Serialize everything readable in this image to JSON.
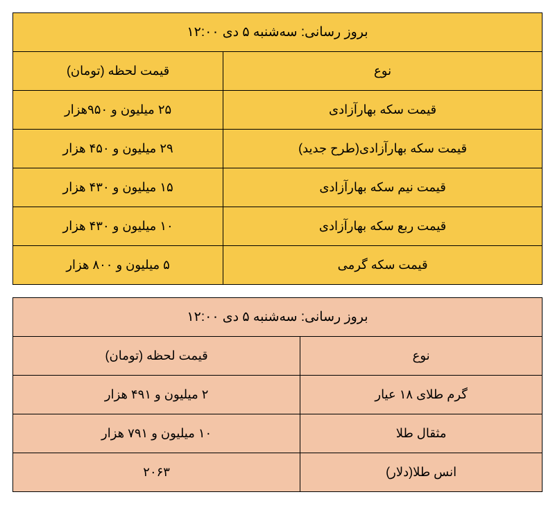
{
  "coin_table": {
    "bg": "yellow",
    "update_label": "بروز رسانی: سه‌شنبه ۵  دی  ۱۲:۰۰",
    "header_type": "نوع",
    "header_price": "قیمت لحظه (تومان)",
    "rows": [
      {
        "type": "قیمت سکه بهارآزادی",
        "price": "۲۵  میلیون و ۹۵۰هزار"
      },
      {
        "type": "قیمت سکه بهارآزادی(طرح جدید)",
        "price": "۲۹  میلیون و ۴۵۰ هزار"
      },
      {
        "type": "قیمت نیم سکه بهارآزادی",
        "price": "۱۵  میلیون و ۴۳۰ هزار"
      },
      {
        "type": "قیمت ربع سکه بهارآزادی",
        "price": "۱۰  میلیون و ۴۳۰ هزار"
      },
      {
        "type": "قیمت سکه گرمی",
        "price": "۵ میلیون و ۸۰۰ هزار"
      }
    ]
  },
  "gold_table": {
    "bg": "peach",
    "update_label": "بروز رسانی: سه‌شنبه ۵  دی  ۱۲:۰۰",
    "header_type": "نوع",
    "header_price": "قیمت لحظه (تومان)",
    "rows": [
      {
        "type": "گرم طلای ۱۸ عیار",
        "price": "۲ میلیون و ۴۹۱  هزار"
      },
      {
        "type": "مثقال طلا",
        "price": "۱۰ میلیون و ۷۹۱  هزار"
      },
      {
        "type": "انس طلا(دلار)",
        "price": "۲۰۶۳"
      }
    ]
  }
}
